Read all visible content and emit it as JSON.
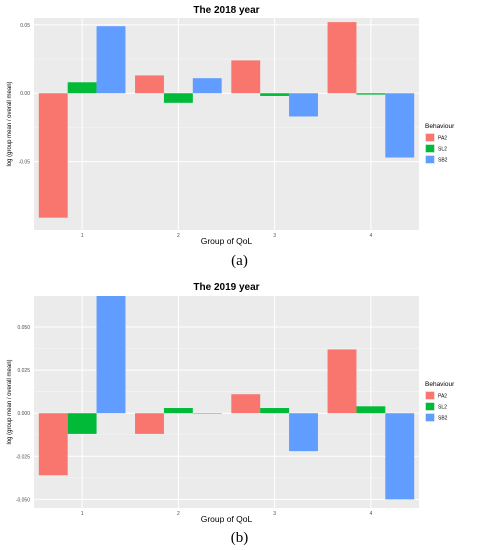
{
  "legend_keys": [
    "pa2",
    "sl2",
    "sb2"
  ],
  "chart_data": [
    {
      "type": "bar",
      "title": "The 2018 year",
      "xlabel": "Group of QoL",
      "ylabel": "log (group mean / overall mean)",
      "categories": [
        "1",
        "2",
        "3",
        "4"
      ],
      "x_tick_labels": [
        "1",
        "2",
        "3",
        "4"
      ],
      "ylim": [
        -0.1,
        0.055
      ],
      "y_ticks": [
        0.05,
        0.0,
        -0.05
      ],
      "y_tick_labels": [
        "0.05",
        "0.00",
        "-0.05"
      ],
      "legend_title": "Behaviour",
      "legend_position": "right",
      "grid": true,
      "series": [
        {
          "name": "PA2",
          "color": "#F8766D",
          "values": [
            -0.091,
            0.013,
            0.024,
            0.052
          ]
        },
        {
          "name": "SL2",
          "color": "#00BA38",
          "values": [
            0.008,
            -0.007,
            -0.002,
            -0.001
          ]
        },
        {
          "name": "SB2",
          "color": "#619CFF",
          "values": [
            0.049,
            0.011,
            -0.017,
            -0.047
          ]
        }
      ]
    },
    {
      "type": "bar",
      "title": "The 2019 year",
      "xlabel": "Group of QoL",
      "ylabel": "log (group mean / overall mean)",
      "categories": [
        "1",
        "2",
        "3",
        "4"
      ],
      "x_tick_labels": [
        "1",
        "2",
        "3",
        "4"
      ],
      "ylim": [
        -0.055,
        0.068
      ],
      "y_ticks": [
        0.05,
        0.025,
        0.0,
        -0.025,
        -0.05
      ],
      "y_tick_labels": [
        "0.050",
        "0.025",
        "0.000",
        "-0.025",
        "-0.050"
      ],
      "legend_title": "Behaviour",
      "legend_position": "right",
      "grid": true,
      "series": [
        {
          "name": "PA2",
          "color": "#F8766D",
          "values": [
            -0.036,
            -0.012,
            0.011,
            0.037
          ]
        },
        {
          "name": "SL2",
          "color": "#00BA38",
          "values": [
            -0.012,
            0.003,
            0.003,
            0.004
          ]
        },
        {
          "name": "SB2",
          "color": "#619CFF",
          "values": [
            0.068,
            0.0,
            -0.022,
            -0.05
          ]
        }
      ]
    }
  ],
  "captions": [
    "(a)",
    "(b)"
  ]
}
